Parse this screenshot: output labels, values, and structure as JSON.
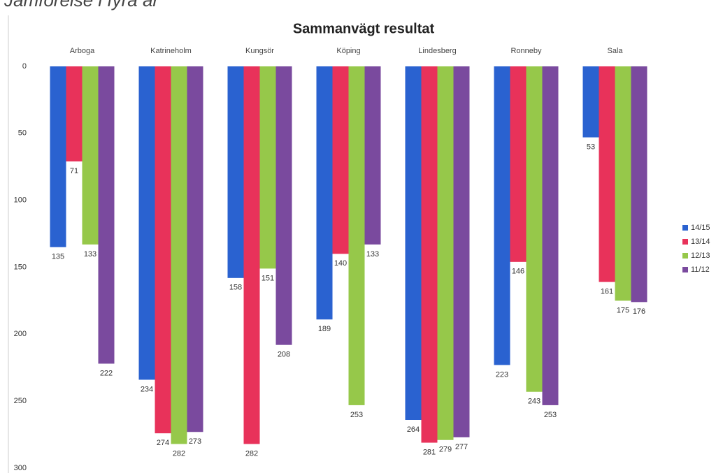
{
  "chart_data": {
    "type": "bar",
    "page_title": "Jämförelse i fyra år",
    "title": "Sammanvägt resultat",
    "categories": [
      "Arboga",
      "Katrineholm",
      "Kungsör",
      "Köping",
      "Lindesberg",
      "Ronneby",
      "Sala"
    ],
    "series": [
      {
        "name": "14/15",
        "color": "#2a62d0",
        "values": [
          135,
          234,
          158,
          189,
          264,
          223,
          53
        ]
      },
      {
        "name": "13/14",
        "color": "#e8325a",
        "values": [
          71,
          274,
          282,
          140,
          281,
          146,
          161
        ]
      },
      {
        "name": "12/13",
        "color": "#96c84a",
        "values": [
          133,
          282,
          151,
          253,
          279,
          243,
          175
        ]
      },
      {
        "name": "11/12",
        "color": "#7a4a9e",
        "values": [
          222,
          273,
          208,
          133,
          277,
          253,
          176
        ]
      }
    ],
    "ylim": [
      0,
      300
    ],
    "yticks": [
      0,
      50,
      100,
      150,
      200,
      250,
      300
    ],
    "y_reversed": true,
    "grid": false,
    "legend": "right"
  }
}
